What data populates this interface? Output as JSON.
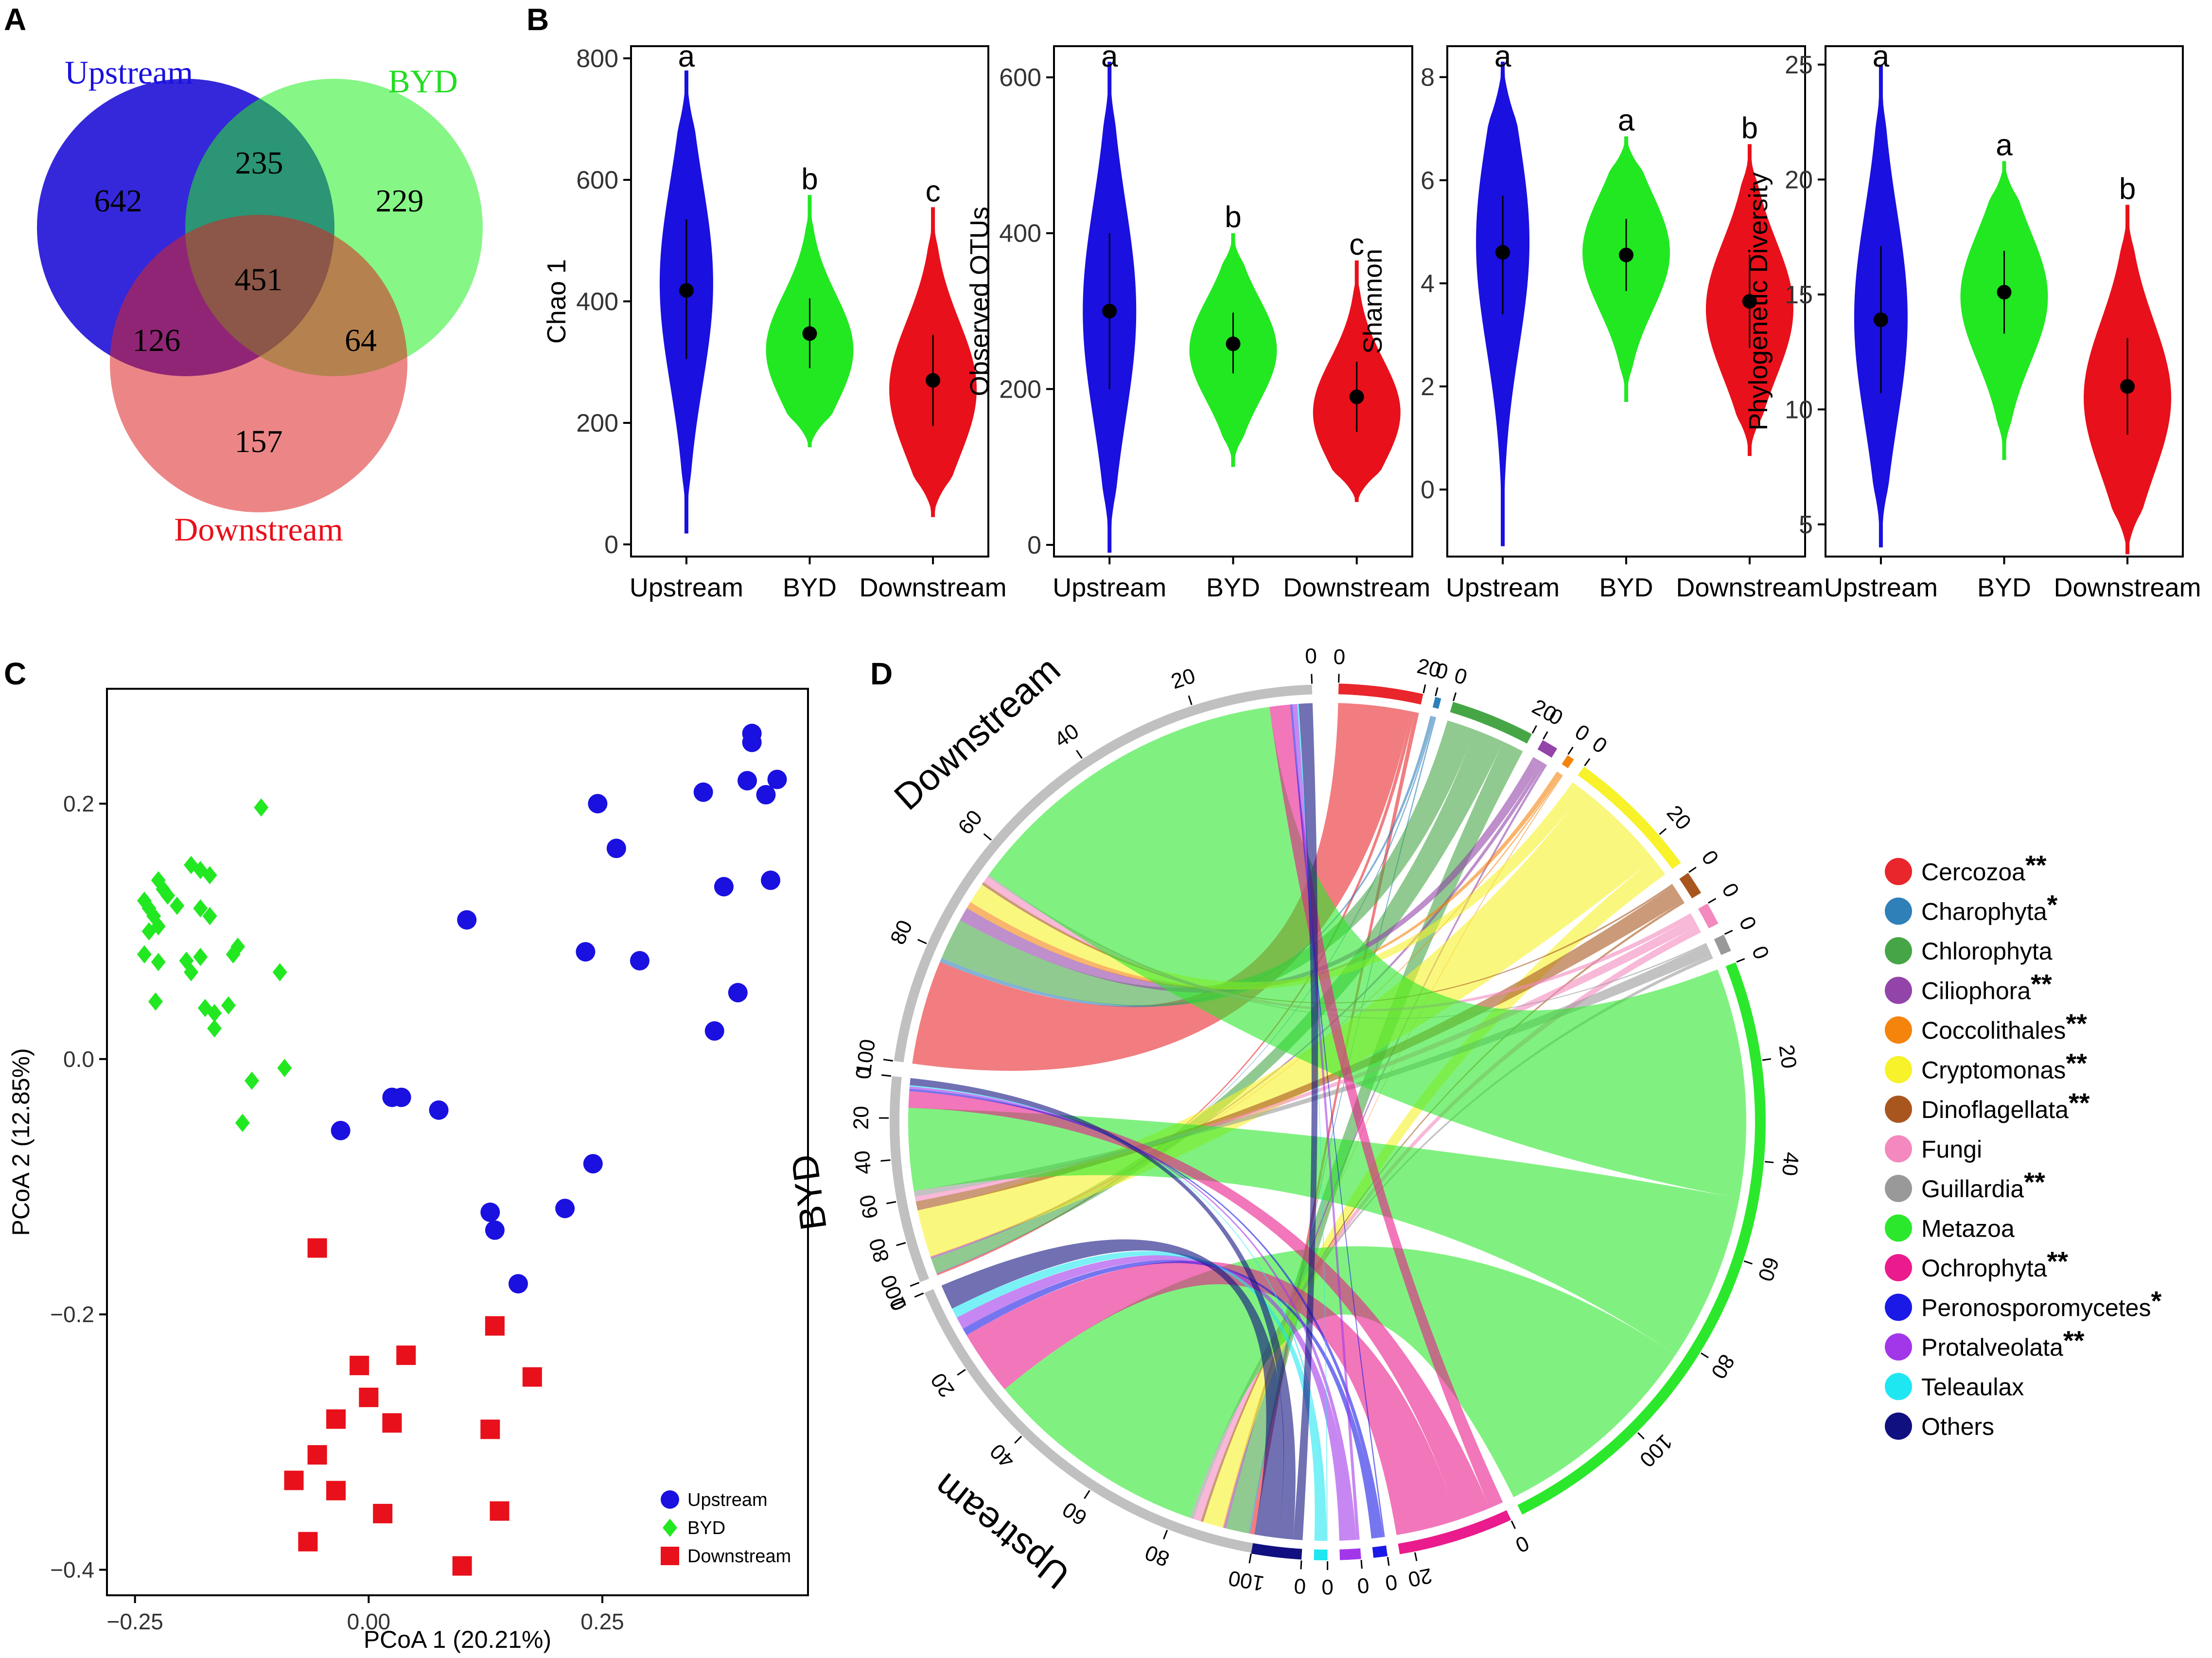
{
  "panel_labels": {
    "a": "A",
    "b": "B",
    "c": "C",
    "d": "D"
  },
  "colors": {
    "upstream": "#1a10e0",
    "byd": "#22e822",
    "downstream": "#e8101a",
    "upstream_fill": "#2a1cd8",
    "byd_fill": "#22ee22",
    "downstream_fill": "#dd2222"
  },
  "chart_data": [
    {
      "type": "venn",
      "panel": "A",
      "sets": [
        "Upstream",
        "BYD",
        "Downstream"
      ],
      "regions": {
        "upstream_only": 642,
        "byd_only": 229,
        "downstream_only": 157,
        "upstream_byd": 235,
        "upstream_downstream": 126,
        "byd_downstream": 64,
        "all": 451
      }
    },
    {
      "type": "violin",
      "panel": "B",
      "categories": [
        "Upstream",
        "BYD",
        "Downstream"
      ],
      "plots": [
        {
          "ylabel": "Chao 1",
          "ylim": [
            -20,
            820
          ],
          "ticks": [
            0,
            200,
            400,
            600,
            800
          ],
          "groups": [
            {
              "median": 418,
              "lo": 305,
              "hi": 535,
              "min": 18,
              "max": 780,
              "peak": 430,
              "sig": "a"
            },
            {
              "median": 347,
              "lo": 290,
              "hi": 405,
              "min": 160,
              "max": 575,
              "peak": 320,
              "sig": "b"
            },
            {
              "median": 270,
              "lo": 195,
              "hi": 345,
              "min": 45,
              "max": 555,
              "peak": 255,
              "sig": "c"
            }
          ]
        },
        {
          "ylabel": "Observed OTUs",
          "ylim": [
            -15,
            640
          ],
          "ticks": [
            0,
            200,
            400,
            600
          ],
          "groups": [
            {
              "median": 300,
              "lo": 200,
              "hi": 400,
              "min": -10,
              "max": 620,
              "peak": 300,
              "sig": "a"
            },
            {
              "median": 258,
              "lo": 220,
              "hi": 298,
              "min": 100,
              "max": 400,
              "peak": 250,
              "sig": "b"
            },
            {
              "median": 190,
              "lo": 145,
              "hi": 235,
              "min": 55,
              "max": 365,
              "peak": 170,
              "sig": "c"
            }
          ]
        },
        {
          "ylabel": "Shannon",
          "ylim": [
            -1.3,
            8.6
          ],
          "ticks": [
            0,
            2,
            4,
            6,
            8
          ],
          "groups": [
            {
              "median": 4.6,
              "lo": 3.4,
              "hi": 5.7,
              "min": -1.1,
              "max": 8.3,
              "peak": 4.8,
              "sig": "a"
            },
            {
              "median": 4.55,
              "lo": 3.85,
              "hi": 5.25,
              "min": 1.7,
              "max": 6.85,
              "peak": 4.6,
              "sig": "a"
            },
            {
              "median": 3.65,
              "lo": 2.75,
              "hi": 4.55,
              "min": 0.65,
              "max": 6.7,
              "peak": 3.5,
              "sig": "b"
            }
          ]
        },
        {
          "ylabel": "Phylogenetic Diversity",
          "ylim": [
            3.6,
            25.8
          ],
          "ticks": [
            5,
            10,
            15,
            20,
            25
          ],
          "groups": [
            {
              "median": 13.9,
              "lo": 10.7,
              "hi": 17.1,
              "min": 4.0,
              "max": 25.0,
              "peak": 14.0,
              "sig": "a"
            },
            {
              "median": 15.1,
              "lo": 13.3,
              "hi": 16.9,
              "min": 7.8,
              "max": 20.8,
              "peak": 14.9,
              "sig": "a"
            },
            {
              "median": 11.0,
              "lo": 8.9,
              "hi": 13.1,
              "min": 3.7,
              "max": 18.9,
              "peak": 10.5,
              "sig": "b"
            }
          ]
        }
      ]
    },
    {
      "type": "scatter",
      "panel": "C",
      "xlabel": "PCoA 1 (20.21%)",
      "ylabel": "PCoA 2 (12.85%)",
      "xlim": [
        -0.28,
        0.47
      ],
      "ylim": [
        -0.42,
        0.29
      ],
      "xticks": [
        -0.25,
        0.0,
        0.25
      ],
      "xtick_labels": [
        "−0.25",
        "0.00",
        "0.25"
      ],
      "yticks": [
        -0.4,
        -0.2,
        0.0,
        0.2
      ],
      "ytick_labels": [
        "−0.4",
        "−0.2",
        "0.0",
        "0.2"
      ],
      "legend": [
        "Upstream",
        "BYD",
        "Downstream"
      ],
      "series": [
        {
          "name": "Upstream",
          "marker": "circle",
          "points": [
            [
              0.41,
              0.255
            ],
            [
              0.41,
              0.248
            ],
            [
              0.437,
              0.219
            ],
            [
              0.405,
              0.218
            ],
            [
              0.425,
              0.207
            ],
            [
              0.358,
              0.209
            ],
            [
              0.245,
              0.2
            ],
            [
              0.265,
              0.165
            ],
            [
              0.38,
              0.135
            ],
            [
              0.43,
              0.14
            ],
            [
              0.105,
              0.109
            ],
            [
              0.232,
              0.084
            ],
            [
              0.29,
              0.077
            ],
            [
              0.395,
              0.052
            ],
            [
              0.37,
              0.022
            ],
            [
              0.025,
              -0.03
            ],
            [
              0.035,
              -0.03
            ],
            [
              0.075,
              -0.04
            ],
            [
              -0.03,
              -0.056
            ],
            [
              0.24,
              -0.082
            ],
            [
              0.13,
              -0.12
            ],
            [
              0.135,
              -0.134
            ],
            [
              0.21,
              -0.117
            ],
            [
              0.16,
              -0.176
            ]
          ]
        },
        {
          "name": "BYD",
          "marker": "diamond",
          "points": [
            [
              -0.115,
              0.197
            ],
            [
              -0.24,
              0.124
            ],
            [
              -0.235,
              0.118
            ],
            [
              -0.23,
              0.112
            ],
            [
              -0.225,
              0.14
            ],
            [
              -0.22,
              0.133
            ],
            [
              -0.215,
              0.128
            ],
            [
              -0.235,
              0.1
            ],
            [
              -0.225,
              0.104
            ],
            [
              -0.205,
              0.12
            ],
            [
              -0.19,
              0.152
            ],
            [
              -0.18,
              0.148
            ],
            [
              -0.17,
              0.144
            ],
            [
              -0.18,
              0.118
            ],
            [
              -0.17,
              0.112
            ],
            [
              -0.24,
              0.082
            ],
            [
              -0.225,
              0.076
            ],
            [
              -0.195,
              0.077
            ],
            [
              -0.18,
              0.08
            ],
            [
              -0.19,
              0.068
            ],
            [
              -0.175,
              0.04
            ],
            [
              -0.165,
              0.036
            ],
            [
              -0.165,
              0.024
            ],
            [
              -0.145,
              0.082
            ],
            [
              -0.14,
              0.088
            ],
            [
              -0.15,
              0.042
            ],
            [
              -0.228,
              0.045
            ],
            [
              -0.095,
              0.068
            ],
            [
              -0.125,
              -0.017
            ],
            [
              -0.09,
              -0.007
            ],
            [
              -0.135,
              -0.05
            ]
          ]
        },
        {
          "name": "Downstream",
          "marker": "square",
          "points": [
            [
              -0.055,
              -0.148
            ],
            [
              0.135,
              -0.209
            ],
            [
              -0.01,
              -0.24
            ],
            [
              0.04,
              -0.232
            ],
            [
              0.175,
              -0.249
            ],
            [
              0.0,
              -0.265
            ],
            [
              -0.035,
              -0.282
            ],
            [
              0.025,
              -0.285
            ],
            [
              0.13,
              -0.29
            ],
            [
              -0.055,
              -0.31
            ],
            [
              -0.08,
              -0.33
            ],
            [
              -0.035,
              -0.338
            ],
            [
              0.015,
              -0.356
            ],
            [
              0.14,
              -0.354
            ],
            [
              -0.065,
              -0.378
            ],
            [
              0.1,
              -0.397
            ]
          ]
        }
      ]
    },
    {
      "type": "chord",
      "panel": "D",
      "groups": [
        "Downstream",
        "BYD",
        "Upstream"
      ],
      "group_ticks": [
        "0",
        "20",
        "40",
        "60",
        "80",
        "100"
      ],
      "taxa": [
        {
          "name": "Cercozoa",
          "sig": "**",
          "color": "#e8262b",
          "downstream": 15.1,
          "byd": 0.8,
          "upstream": 0.9
        },
        {
          "name": "Charophyta",
          "sig": "*",
          "color": "#2f7fb9",
          "downstream": 0.6,
          "byd": 0.3,
          "upstream": 0.3
        },
        {
          "name": "Chlorophyta",
          "sig": "",
          "color": "#46a646",
          "downstream": 6.0,
          "byd": 6.3,
          "upstream": 4.5
        },
        {
          "name": "Ciliophora",
          "sig": "**",
          "color": "#9344a8",
          "downstream": 2.0,
          "byd": 0.8,
          "upstream": 0.5
        },
        {
          "name": "Coccolithales",
          "sig": "**",
          "color": "#f5840c",
          "downstream": 1.0,
          "byd": 0.3,
          "upstream": 0.2
        },
        {
          "name": "Cryptomonas",
          "sig": "**",
          "color": "#f7f22a",
          "downstream": 3.0,
          "byd": 20.0,
          "upstream": 4.0
        },
        {
          "name": "Dinoflagellata",
          "sig": "**",
          "color": "#a9561e",
          "downstream": 0.4,
          "byd": 3.8,
          "upstream": 0.5
        },
        {
          "name": "Fungi",
          "sig": "",
          "color": "#f389be",
          "downstream": 1.0,
          "byd": 2.0,
          "upstream": 1.5
        },
        {
          "name": "Guillardia",
          "sig": "**",
          "color": "#999999",
          "downstream": 0.3,
          "byd": 2.5,
          "upstream": 0.7
        },
        {
          "name": "Metazoa",
          "sig": "",
          "color": "#2ce82c",
          "downstream": 48.0,
          "byd": 35.0,
          "upstream": 45.0
        },
        {
          "name": "Ochrophyta",
          "sig": "**",
          "color": "#ea1b8c",
          "downstream": 3.0,
          "byd": 7.0,
          "upstream": 13.0
        },
        {
          "name": "Peronosporomycetes",
          "sig": "*",
          "color": "#1b19e6",
          "downstream": 0.3,
          "byd": 1.0,
          "upstream": 1.5
        },
        {
          "name": "Protalveolata",
          "sig": "**",
          "color": "#a237ea",
          "downstream": 0.7,
          "byd": 1.0,
          "upstream": 2.5
        },
        {
          "name": "Teleaulax",
          "sig": "",
          "color": "#1fe7f2",
          "downstream": 0.2,
          "byd": 0.5,
          "upstream": 2.0
        },
        {
          "name": "Others",
          "sig": "",
          "color": "#101080",
          "downstream": 2.0,
          "byd": 3.0,
          "upstream": 5.0
        }
      ],
      "taxa_ticks": {
        "Cercozoa": [
          "0",
          "20"
        ],
        "Charophyta": [
          "0"
        ],
        "Chlorophyta": [
          "0",
          "20"
        ],
        "Ciliophora": [
          "0"
        ],
        "Coccolithales": [
          "0"
        ],
        "Cryptomonas": [
          "0",
          "20"
        ],
        "Dinoflagellata": [
          "0"
        ],
        "Fungi": [
          "0"
        ],
        "Guillardia": [
          "0"
        ],
        "Metazoa": [
          "0",
          "20",
          "40",
          "60",
          "80",
          "100"
        ],
        "Ochrophyta": [
          "0",
          "20"
        ],
        "Peronosporomycetes": [
          "0"
        ],
        "Protalveolata": [
          "0"
        ],
        "Teleaulax": [
          "0"
        ],
        "Others": [
          "0"
        ]
      }
    }
  ]
}
